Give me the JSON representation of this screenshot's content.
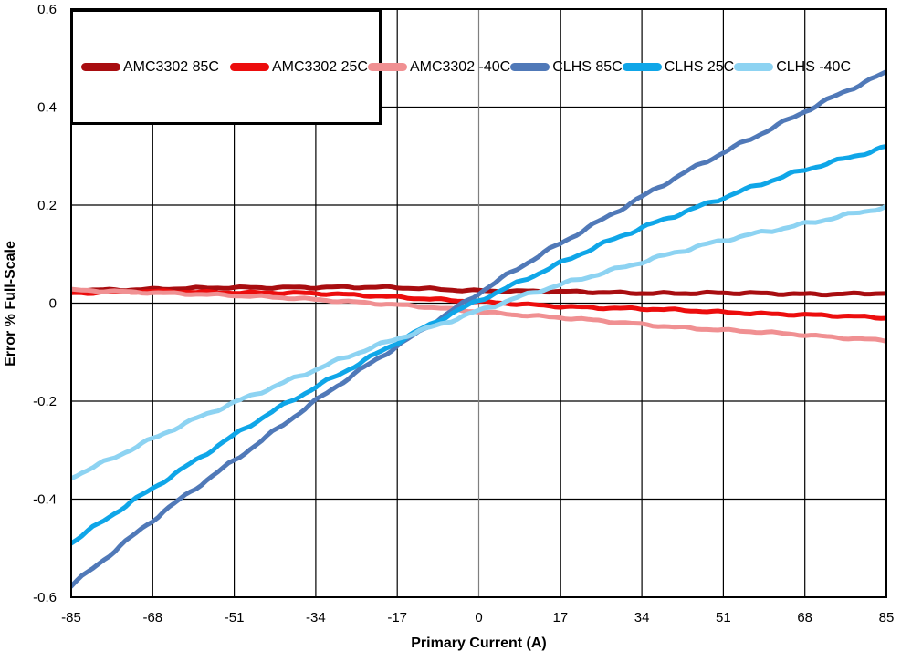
{
  "chart_data": {
    "type": "line",
    "title": "",
    "xlabel": "Primary Current (A)",
    "ylabel": "Error % Full-Scale",
    "xlim": [
      -85,
      85
    ],
    "ylim": [
      -0.6,
      0.6
    ],
    "xticks": [
      -85,
      -68,
      -51,
      -34,
      -17,
      0,
      17,
      34,
      51,
      68,
      85
    ],
    "yticks": [
      -0.6,
      -0.4,
      -0.2,
      0,
      0.2,
      0.4,
      0.6
    ],
    "grid": true,
    "legend_position": "top-left",
    "x": [
      -85,
      -68,
      -51,
      -34,
      -17,
      0,
      17,
      34,
      51,
      68,
      85
    ],
    "series": [
      {
        "name": "AMC3302 85C",
        "color": "#A80D10",
        "values": [
          0.026,
          0.029,
          0.031,
          0.033,
          0.031,
          0.026,
          0.023,
          0.021,
          0.02,
          0.019,
          0.02
        ]
      },
      {
        "name": "AMC3302 25C",
        "color": "#EC0D0D",
        "values": [
          0.021,
          0.023,
          0.022,
          0.019,
          0.013,
          0.002,
          -0.006,
          -0.012,
          -0.018,
          -0.024,
          -0.03
        ]
      },
      {
        "name": "AMC3302 -40C",
        "color": "#F09092",
        "values": [
          0.026,
          0.022,
          0.015,
          0.008,
          -0.004,
          -0.017,
          -0.03,
          -0.043,
          -0.055,
          -0.065,
          -0.076
        ]
      },
      {
        "name": "CLHS 85C",
        "color": "#5079B8",
        "values": [
          -0.575,
          -0.444,
          -0.32,
          -0.2,
          -0.087,
          0.02,
          0.122,
          0.217,
          0.307,
          0.392,
          0.47
        ]
      },
      {
        "name": "CLHS 25C",
        "color": "#0FA6E8",
        "values": [
          -0.49,
          -0.377,
          -0.27,
          -0.171,
          -0.08,
          0.005,
          0.082,
          0.153,
          0.216,
          0.271,
          0.32
        ]
      },
      {
        "name": "CLHS -40C",
        "color": "#8DD3F2",
        "values": [
          -0.355,
          -0.277,
          -0.203,
          -0.135,
          -0.073,
          -0.015,
          0.037,
          0.085,
          0.127,
          0.163,
          0.195
        ]
      }
    ],
    "colors": {
      "background": "#FFFFFF",
      "grid": "#000000",
      "border": "#000000",
      "zero_axis_vertical": "#7F7F7F",
      "text": "#000000"
    }
  }
}
